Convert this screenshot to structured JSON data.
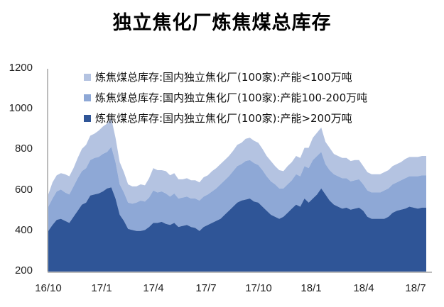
{
  "title": "独立焦化厂炼焦煤总库存",
  "colors": {
    "small": "#b4c3e1",
    "medium": "#8ea8d6",
    "large": "#2f5597",
    "axis": "#a6a6a6"
  },
  "legend": [
    {
      "label": "炼焦煤总库存:国内独立焦化厂(100家):产能<100万吨",
      "color": "#b4c3e1"
    },
    {
      "label": "炼焦煤总库存:国内独立焦化厂(100家):产能100-200万吨",
      "color": "#8ea8d6"
    },
    {
      "label": "炼焦煤总库存:国内独立焦化厂(100家):产能>200万吨",
      "color": "#2f5597"
    }
  ],
  "chart_data": {
    "type": "area",
    "stacked": true,
    "title": "独立焦化厂炼焦煤总库存",
    "xlabel": "",
    "ylabel": "",
    "ylim": [
      200,
      1200
    ],
    "yticks": [
      200,
      400,
      600,
      800,
      1000,
      1200
    ],
    "xticks": [
      "16/10",
      "17/1",
      "17/4",
      "17/7",
      "17/10",
      "18/1",
      "18/4",
      "18/7"
    ],
    "legend_position": "top-left inside",
    "grid": false,
    "series": [
      {
        "name": "炼焦煤总库存:国内独立焦化厂(100家):产能>200万吨",
        "values": [
          400,
          430,
          455,
          460,
          450,
          440,
          470,
          500,
          530,
          540,
          575,
          580,
          585,
          595,
          610,
          615,
          560,
          480,
          450,
          410,
          405,
          400,
          400,
          405,
          420,
          440,
          440,
          445,
          435,
          430,
          440,
          420,
          425,
          430,
          420,
          415,
          400,
          420,
          430,
          440,
          450,
          460,
          480,
          500,
          520,
          540,
          550,
          555,
          560,
          545,
          540,
          520,
          500,
          480,
          470,
          460,
          470,
          490,
          510,
          530,
          520,
          560,
          540,
          560,
          580,
          610,
          580,
          550,
          530,
          520,
          510,
          515,
          505,
          510,
          515,
          500,
          470,
          460,
          460,
          460,
          460,
          470,
          490,
          500,
          505,
          510,
          520,
          515,
          510,
          515,
          515
        ]
      },
      {
        "name": "炼焦煤总库存:国内独立焦化厂(100家):产能100-200万吨",
        "values": [
          120,
          130,
          140,
          145,
          140,
          140,
          150,
          160,
          165,
          170,
          175,
          180,
          180,
          185,
          180,
          200,
          180,
          150,
          140,
          130,
          130,
          140,
          150,
          140,
          145,
          160,
          150,
          150,
          150,
          140,
          145,
          140,
          140,
          140,
          140,
          145,
          150,
          150,
          150,
          155,
          160,
          170,
          170,
          170,
          175,
          180,
          180,
          190,
          190,
          190,
          185,
          180,
          170,
          165,
          160,
          150,
          140,
          140,
          140,
          150,
          150,
          160,
          170,
          190,
          190,
          180,
          150,
          150,
          150,
          150,
          150,
          145,
          140,
          140,
          140,
          130,
          130,
          130,
          130,
          130,
          140,
          140,
          140,
          140,
          145,
          150,
          150,
          155,
          160,
          160,
          160
        ]
      },
      {
        "name": "炼焦煤总库存:国内独立焦化厂(100家):产能<100万吨",
        "values": [
          60,
          80,
          80,
          80,
          90,
          90,
          90,
          100,
          110,
          115,
          120,
          120,
          130,
          135,
          140,
          140,
          120,
          110,
          100,
          90,
          85,
          80,
          80,
          80,
          95,
          110,
          110,
          105,
          110,
          105,
          100,
          95,
          90,
          90,
          90,
          90,
          90,
          95,
          95,
          100,
          100,
          100,
          100,
          100,
          100,
          105,
          105,
          110,
          110,
          110,
          110,
          105,
          100,
          100,
          90,
          90,
          85,
          90,
          90,
          90,
          90,
          90,
          100,
          110,
          115,
          120,
          110,
          110,
          100,
          100,
          100,
          100,
          100,
          100,
          95,
          90,
          90,
          90,
          90,
          90,
          90,
          90,
          90,
          90,
          90,
          95,
          95,
          95,
          95,
          95,
          95
        ]
      }
    ]
  }
}
